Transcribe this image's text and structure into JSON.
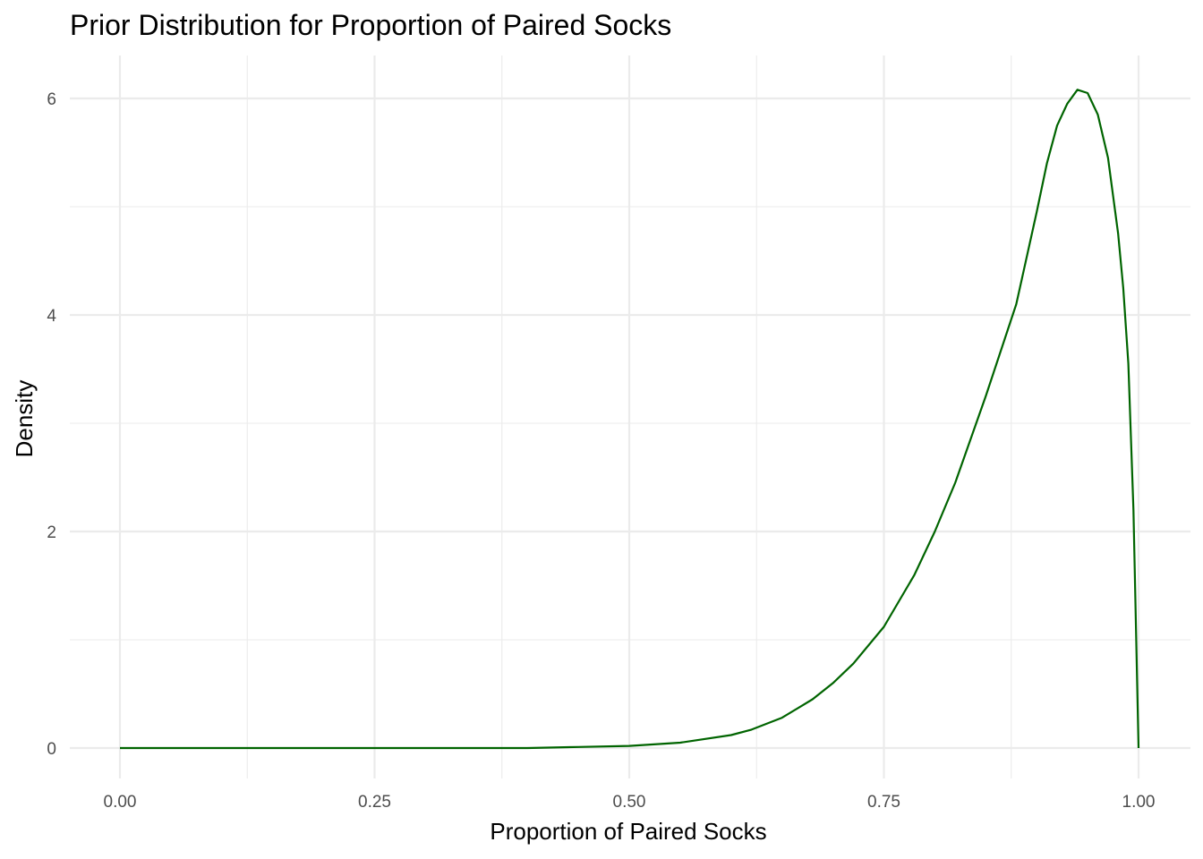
{
  "chart_data": {
    "type": "line",
    "title": "Prior Distribution for Proportion of Paired Socks",
    "xlabel": "Proportion of Paired Socks",
    "ylabel": "Density",
    "xlim": [
      0,
      1
    ],
    "ylim": [
      0,
      6.1
    ],
    "x_ticks": [
      0,
      0.25,
      0.5,
      0.75,
      1
    ],
    "x_tick_labels": [
      "0.00",
      "0.25",
      "0.50",
      "0.75",
      "1.00"
    ],
    "y_ticks": [
      0,
      2,
      4,
      6
    ],
    "y_tick_labels": [
      "0",
      "2",
      "4",
      "6"
    ],
    "grid": true,
    "legend": "none",
    "series": [
      {
        "color": "#006400",
        "x": [
          0,
          0.1,
          0.2,
          0.3,
          0.4,
          0.45,
          0.5,
          0.55,
          0.6,
          0.62,
          0.65,
          0.68,
          0.7,
          0.72,
          0.75,
          0.78,
          0.8,
          0.82,
          0.85,
          0.88,
          0.9,
          0.91,
          0.92,
          0.93,
          0.94,
          0.95,
          0.96,
          0.97,
          0.98,
          0.985,
          0.99,
          0.995,
          1.0
        ],
        "y": [
          0,
          0,
          0,
          0,
          0,
          0.01,
          0.02,
          0.05,
          0.12,
          0.17,
          0.28,
          0.45,
          0.6,
          0.78,
          1.12,
          1.6,
          2.0,
          2.45,
          3.25,
          4.1,
          4.95,
          5.4,
          5.75,
          5.95,
          6.08,
          6.05,
          5.85,
          5.45,
          4.75,
          4.25,
          3.55,
          2.2,
          0
        ]
      }
    ]
  }
}
